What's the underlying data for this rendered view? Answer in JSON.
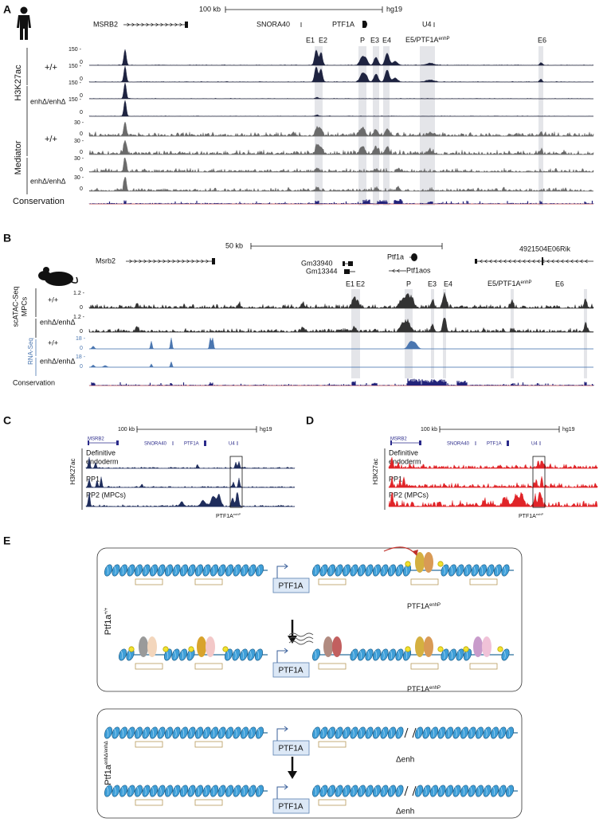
{
  "panel_a": {
    "label": "A",
    "scale": "100 kb",
    "build": "hg19",
    "genes": [
      "MSRB2",
      "SNORA40",
      "PTF1A",
      "U4"
    ],
    "elements": [
      "E1",
      "E2",
      "P",
      "E3",
      "E4",
      "E5/PTF1A",
      "E6"
    ],
    "element_sup": "enhP",
    "marks": [
      "H3K27ac",
      "Mediator"
    ],
    "genotypes": [
      "+/+",
      "enhΔ/enhΔ"
    ],
    "axis": {
      "h3k27ac_max": "150 -",
      "mediator_max": "30 -",
      "zero": "0"
    },
    "conservation": "Conservation"
  },
  "panel_b": {
    "label": "B",
    "scale": "50 kb",
    "genes": [
      "Msrb2",
      "Gm33940",
      "Gm13344",
      "Ptf1a",
      "Ptf1aos",
      "4921504E06Rik"
    ],
    "elements": [
      "E1",
      "E2",
      "P",
      "E3",
      "E4",
      "E5/PTF1A",
      "E6"
    ],
    "element_sup": "enhP",
    "assays": [
      "scATAC-Seq",
      "MPCs",
      "RNA-Seq"
    ],
    "genotypes": [
      "+/+",
      "enhΔ/enhΔ"
    ],
    "axis": {
      "atac_max": "1.2 -",
      "rna_max": "18 -",
      "zero": "0"
    },
    "conservation": "Conservation"
  },
  "panel_c": {
    "label": "C",
    "scale": "100 kb",
    "build": "hg19",
    "genes": [
      "MSRB2",
      "SNORA40",
      "PTF1A",
      "U4"
    ],
    "mark": "H3K27ac",
    "stages": [
      "Definitive",
      "endoderm",
      "PP1",
      "PP2 (MPCs)"
    ],
    "enhancer": "PTF1A",
    "enhancer_sup": "enhP"
  },
  "panel_d": {
    "label": "D",
    "scale": "100 kb",
    "build": "hg19",
    "genes": [
      "MSRB2",
      "SNORA40",
      "PTF1A",
      "U4"
    ],
    "mark": "H3K27ac",
    "stages": [
      "Definitive",
      "endoderm",
      "PP1",
      "PP2 (MPCs)"
    ],
    "enhancer": "PTF1A",
    "enhancer_sup": "enhP"
  },
  "panel_e": {
    "label": "E",
    "wt": {
      "name": "Ptf1a",
      "sup": "+/+"
    },
    "mut": {
      "name": "Ptf1a",
      "sup": "enhΔ/enhΔ"
    },
    "gene": "PTF1A",
    "enhancer": "PTF1A",
    "enhancer_sup": "enhP",
    "deletion": "Δenh"
  }
}
